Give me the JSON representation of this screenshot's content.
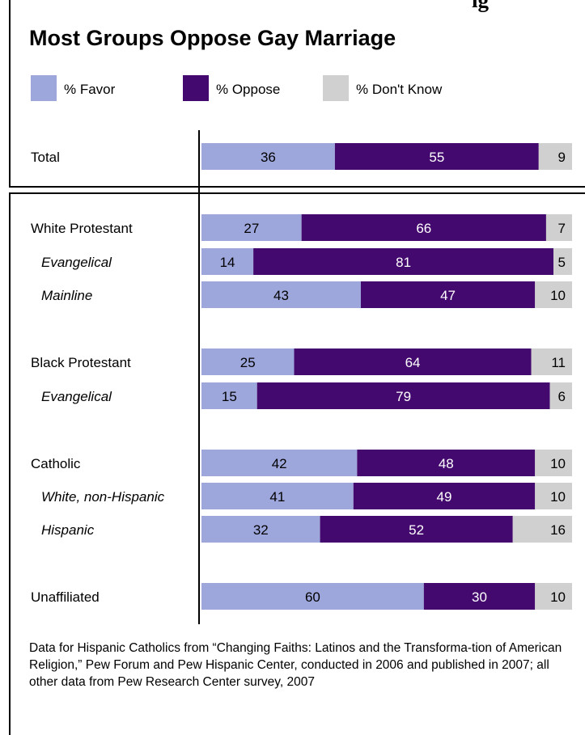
{
  "top_clipped_text": "ig",
  "chart_data": {
    "type": "bar",
    "stacked": true,
    "orientation": "horizontal",
    "title": "Most Groups Oppose Gay Marriage",
    "xlim": [
      0,
      100
    ],
    "legend_position": "top",
    "series": [
      {
        "name": "% Favor",
        "color": "#9ea7dc",
        "values": [
          36,
          27,
          14,
          43,
          25,
          15,
          42,
          41,
          32,
          60
        ]
      },
      {
        "name": "% Oppose",
        "color": "#44096e",
        "values": [
          55,
          66,
          81,
          47,
          64,
          79,
          48,
          49,
          52,
          30
        ]
      },
      {
        "name": "% Don't Know",
        "color": "#d0d0d0",
        "values": [
          9,
          7,
          5,
          10,
          11,
          6,
          10,
          10,
          16,
          10
        ]
      }
    ],
    "categories": [
      {
        "label": "Total",
        "italic": false
      },
      {
        "label": "White Protestant",
        "italic": false
      },
      {
        "label": "Evangelical",
        "italic": true
      },
      {
        "label": "Mainline",
        "italic": true
      },
      {
        "label": "Black Protestant",
        "italic": false
      },
      {
        "label": "Evangelical",
        "italic": true
      },
      {
        "label": "Catholic",
        "italic": false
      },
      {
        "label": "White, non-Hispanic",
        "italic": true
      },
      {
        "label": "Hispanic",
        "italic": true
      },
      {
        "label": "Unaffiliated",
        "italic": false
      }
    ]
  },
  "footnote": "Data for Hispanic Catholics from “Changing Faiths: Latinos and the Transforma-tion of American Religion,” Pew Forum and Pew Hispanic Center, conducted in 2006 and published in 2007; all other data from Pew Research Center survey, 2007"
}
